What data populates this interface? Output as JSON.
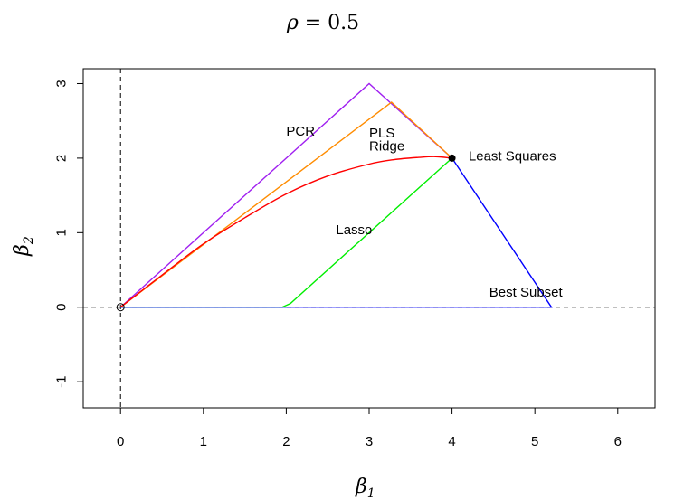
{
  "chart_data": {
    "type": "line",
    "title": "ρ = 0.5",
    "title_symbol": "ρ",
    "title_rest": " = 0.5",
    "xlabel": "β",
    "xlabel_sub": "1",
    "ylabel": "β",
    "ylabel_sub": "2",
    "xlim": [
      -0.45,
      6.45
    ],
    "ylim": [
      -1.35,
      3.2
    ],
    "x_ticks": [
      0,
      1,
      2,
      3,
      4,
      5,
      6
    ],
    "x_tick_labels": [
      "0",
      "1",
      "2",
      "3",
      "4",
      "5",
      "6"
    ],
    "y_ticks": [
      -1,
      0,
      1,
      2,
      3
    ],
    "y_tick_labels": [
      "-1",
      "0",
      "1",
      "2",
      "3"
    ],
    "grid": false,
    "reference_lines": [
      {
        "orientation": "horizontal",
        "value": 0,
        "style": "dashed"
      },
      {
        "orientation": "vertical",
        "value": 0,
        "style": "dashed"
      }
    ],
    "series": [
      {
        "name": "PCR",
        "color": "#a020f0",
        "x": [
          0,
          3,
          4
        ],
        "y": [
          0,
          3,
          2
        ]
      },
      {
        "name": "PLS",
        "color": "#ff8c00",
        "x": [
          0,
          3.27,
          4
        ],
        "y": [
          0,
          2.75,
          2
        ]
      },
      {
        "name": "Ridge",
        "color": "#ff0000",
        "x": [
          0,
          0.5,
          1,
          1.5,
          2,
          2.5,
          3,
          3.3,
          3.6,
          3.8,
          4
        ],
        "y": [
          0,
          0.43,
          0.85,
          1.2,
          1.52,
          1.76,
          1.92,
          1.98,
          2.01,
          2.02,
          2.0
        ]
      },
      {
        "name": "Lasso",
        "color": "#00ee00",
        "x": [
          0,
          1.95,
          2.05,
          4
        ],
        "y": [
          0,
          0,
          0.05,
          2
        ]
      },
      {
        "name": "Best Subset",
        "color": "#0000ff",
        "x": [
          0,
          5.2,
          4
        ],
        "y": [
          0,
          0,
          2
        ]
      }
    ],
    "points": [
      {
        "name": "Least Squares",
        "x": 4,
        "y": 2,
        "filled": true,
        "color": "#000000"
      },
      {
        "name": "origin",
        "x": 0,
        "y": 0,
        "filled": false,
        "color": "#000000"
      }
    ],
    "labels": [
      {
        "text": "PCR",
        "x": 2.0,
        "y": 2.3
      },
      {
        "text": "PLS",
        "x": 3.0,
        "y": 2.28
      },
      {
        "text": "Ridge",
        "x": 3.0,
        "y": 2.1
      },
      {
        "text": "Lasso",
        "x": 2.6,
        "y": 0.98
      },
      {
        "text": "Least Squares",
        "x": 4.2,
        "y": 1.97
      },
      {
        "text": "Best Subset",
        "x": 4.45,
        "y": 0.14
      }
    ]
  }
}
